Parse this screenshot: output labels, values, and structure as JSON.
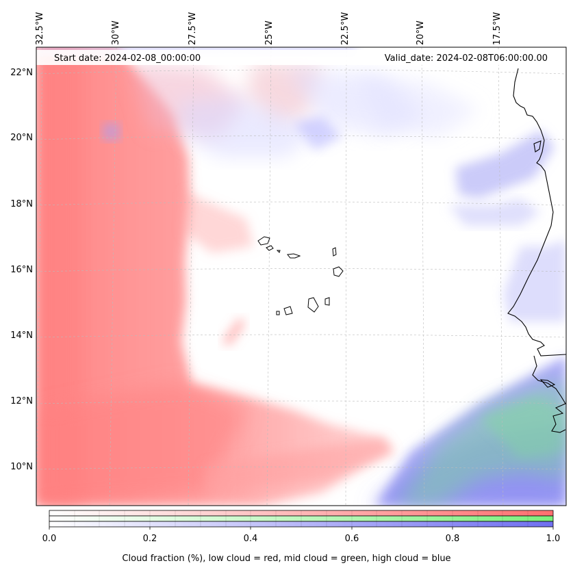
{
  "map": {
    "start_date": "Start date: 2024-02-08_00:00:00",
    "valid_date": "Valid_date: 2024-02-08T06:00:00.00",
    "lon_labels": [
      "32.5°W",
      "30°W",
      "27.5°W",
      "25°W",
      "22.5°W",
      "20°W",
      "17.5°W"
    ],
    "lat_labels": [
      "22°N",
      "20°N",
      "18°N",
      "16°N",
      "14°N",
      "12°N",
      "10°N"
    ],
    "gridlines": true,
    "layers": {
      "low_cloud_color": "#ff8080",
      "mid_cloud_color": "#80ff80",
      "high_cloud_color": "#8080ff"
    }
  },
  "colorbar": {
    "ticks": [
      "0.0",
      "0.2",
      "0.4",
      "0.6",
      "0.8",
      "1.0"
    ],
    "label": "Cloud fraction (%), low cloud = red, mid cloud = green, high cloud = blue"
  }
}
